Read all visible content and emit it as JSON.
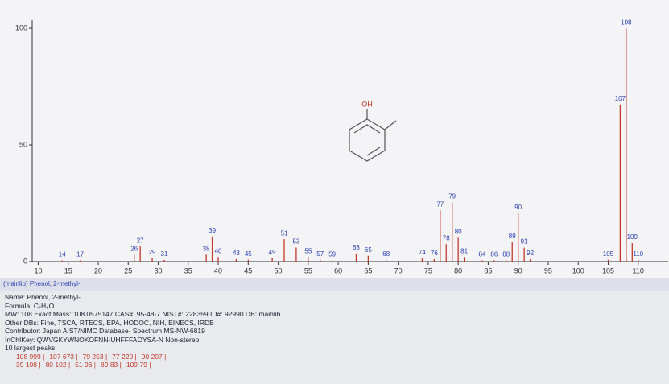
{
  "chart_data": {
    "type": "stick",
    "x": [
      14,
      17,
      26,
      27,
      29,
      31,
      38,
      39,
      40,
      43,
      45,
      49,
      51,
      53,
      55,
      57,
      59,
      63,
      65,
      68,
      74,
      76,
      77,
      78,
      79,
      80,
      81,
      84,
      86,
      88,
      89,
      90,
      91,
      92,
      105,
      107,
      108,
      109,
      110
    ],
    "values": [
      0.5,
      0.5,
      3,
      6.5,
      1.5,
      0.7,
      3,
      10.8,
      2,
      1,
      0.8,
      1.5,
      9.6,
      6,
      2,
      0.8,
      0.5,
      3.5,
      2.5,
      0.8,
      1.5,
      1,
      22,
      7.5,
      25.3,
      10.2,
      2,
      0.5,
      0.5,
      0.5,
      8.3,
      20.7,
      6,
      1,
      0.8,
      67.3,
      99.9,
      7.9,
      0.8
    ],
    "color": "#c0392b",
    "label_color": "#2b3fb0",
    "xlim": [
      9,
      115
    ],
    "xticks": [
      10,
      15,
      20,
      25,
      30,
      35,
      40,
      45,
      50,
      55,
      60,
      65,
      70,
      75,
      80,
      85,
      90,
      95,
      100,
      105,
      110
    ],
    "ylim": [
      0,
      100
    ],
    "yticks": [
      0,
      50,
      100
    ],
    "structure_label": "OH",
    "strip_label": "(mainlib) Phenol, 2-methyl-"
  },
  "info": {
    "lines": [
      "Name: Phenol, 2-methyl-",
      "Formula: C₇H₈O",
      "MW: 108 Exact Mass: 108.0575147 CAS#: 95-48-7 NIST#: 228359 ID#: 92990 DB: mainlib",
      "Other DBs: Fine, TSCA, RTECS, EPA, HODOC, NIH, EINECS, IRDB",
      "Contributor: Japan AIST/NIMC Database- Spectrum MS-NW-6819",
      "InChIKey: QWVGKYWNOKOFNN-UHFFFAOYSA-N  Non-stereo",
      "10 largest peaks:"
    ],
    "peaks": [
      [
        "108 999 |",
        "107 673 |",
        "79 253 |",
        "77 220 |",
        "90 207 |"
      ],
      [
        "39 108 |",
        "80 102 |",
        "51 96 |",
        "89 83 |",
        "109 79 |"
      ]
    ]
  }
}
